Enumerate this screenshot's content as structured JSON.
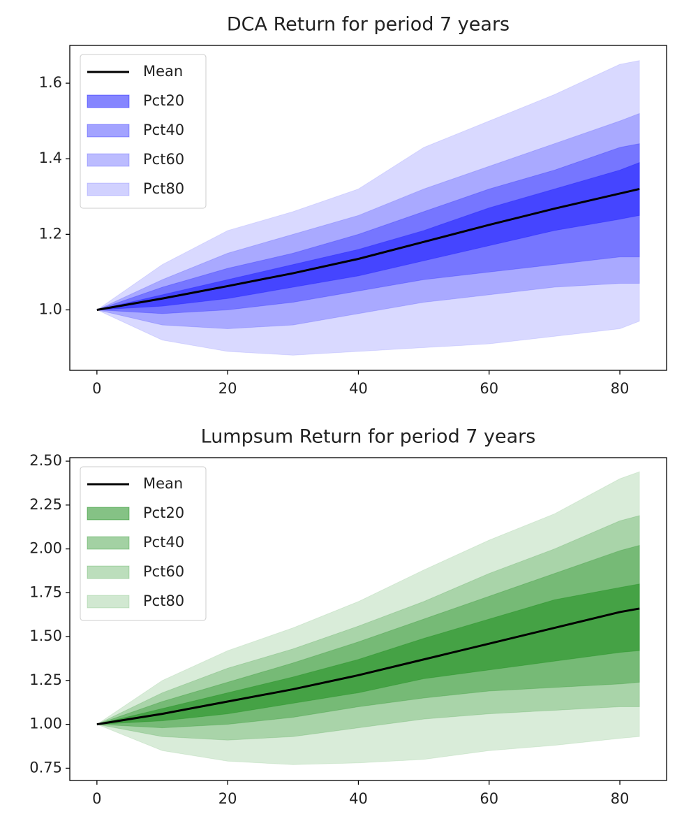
{
  "chart_data": [
    {
      "type": "fan",
      "title": "DCA Return for period 7 years",
      "x": [
        0,
        10,
        20,
        30,
        40,
        50,
        60,
        70,
        80,
        83
      ],
      "xlim": [
        -4.15,
        87.15
      ],
      "xticks": [
        0,
        20,
        40,
        60,
        80
      ],
      "ylim": [
        0.84,
        1.7
      ],
      "yticks": [
        {
          "value": 1.0,
          "label": "1.0"
        },
        1.2,
        1.4,
        1.6
      ],
      "legend": "upper left",
      "series": [
        {
          "name": "Mean",
          "color": "#000000",
          "values": [
            1.0,
            1.03,
            1.063,
            1.097,
            1.135,
            1.18,
            1.225,
            1.268,
            1.308,
            1.32
          ]
        },
        {
          "name": "Pct20",
          "color": "#0000ff",
          "alpha": 0.4,
          "lower": [
            1.0,
            1.01,
            1.03,
            1.06,
            1.09,
            1.13,
            1.17,
            1.21,
            1.24,
            1.25
          ],
          "upper": [
            1.0,
            1.04,
            1.08,
            1.12,
            1.16,
            1.21,
            1.27,
            1.32,
            1.37,
            1.39
          ]
        },
        {
          "name": "Pct40",
          "color": "#0000ff",
          "alpha": 0.3,
          "lower": [
            1.0,
            0.99,
            1.0,
            1.02,
            1.05,
            1.08,
            1.1,
            1.12,
            1.14,
            1.14
          ],
          "upper": [
            1.0,
            1.06,
            1.11,
            1.15,
            1.2,
            1.26,
            1.32,
            1.37,
            1.43,
            1.44
          ]
        },
        {
          "name": "Pct60",
          "color": "#0000ff",
          "alpha": 0.22,
          "lower": [
            1.0,
            0.96,
            0.95,
            0.96,
            0.99,
            1.02,
            1.04,
            1.06,
            1.07,
            1.07
          ],
          "upper": [
            1.0,
            1.08,
            1.15,
            1.2,
            1.25,
            1.32,
            1.38,
            1.44,
            1.5,
            1.52
          ]
        },
        {
          "name": "Pct80",
          "color": "#0000ff",
          "alpha": 0.15,
          "lower": [
            1.0,
            0.92,
            0.89,
            0.88,
            0.89,
            0.9,
            0.91,
            0.93,
            0.95,
            0.97
          ],
          "upper": [
            1.0,
            1.12,
            1.21,
            1.26,
            1.32,
            1.43,
            1.5,
            1.57,
            1.65,
            1.66
          ]
        }
      ]
    },
    {
      "type": "fan",
      "title": "Lumpsum Return for period 7 years",
      "x": [
        0,
        10,
        20,
        30,
        40,
        50,
        60,
        70,
        80,
        83
      ],
      "xlim": [
        -4.15,
        87.15
      ],
      "xticks": [
        0,
        20,
        40,
        60,
        80
      ],
      "ylim": [
        0.68,
        2.52
      ],
      "yticks": [
        0.75,
        {
          "value": 1.0,
          "label": "1.00"
        },
        1.25,
        {
          "value": 1.5,
          "label": "1.50"
        },
        1.75,
        {
          "value": 2.0,
          "label": "2.00"
        },
        2.25,
        {
          "value": 2.5,
          "label": "2.50"
        }
      ],
      "legend": "upper left",
      "series": [
        {
          "name": "Mean",
          "color": "#000000",
          "values": [
            1.0,
            1.06,
            1.13,
            1.2,
            1.28,
            1.37,
            1.46,
            1.55,
            1.64,
            1.66
          ]
        },
        {
          "name": "Pct20",
          "color": "#008000",
          "alpha": 0.4,
          "lower": [
            1.0,
            1.02,
            1.06,
            1.12,
            1.18,
            1.26,
            1.31,
            1.36,
            1.41,
            1.42
          ],
          "upper": [
            1.0,
            1.09,
            1.18,
            1.27,
            1.37,
            1.49,
            1.6,
            1.71,
            1.78,
            1.8
          ]
        },
        {
          "name": "Pct40",
          "color": "#008000",
          "alpha": 0.3,
          "lower": [
            1.0,
            0.98,
            1.0,
            1.04,
            1.1,
            1.15,
            1.19,
            1.21,
            1.23,
            1.24
          ],
          "upper": [
            1.0,
            1.13,
            1.24,
            1.35,
            1.47,
            1.6,
            1.73,
            1.86,
            1.99,
            2.02
          ]
        },
        {
          "name": "Pct60",
          "color": "#008000",
          "alpha": 0.22,
          "lower": [
            1.0,
            0.93,
            0.91,
            0.93,
            0.98,
            1.03,
            1.06,
            1.08,
            1.1,
            1.1
          ],
          "upper": [
            1.0,
            1.18,
            1.32,
            1.43,
            1.56,
            1.7,
            1.86,
            2.0,
            2.16,
            2.19
          ]
        },
        {
          "name": "Pct80",
          "color": "#008000",
          "alpha": 0.15,
          "lower": [
            1.0,
            0.85,
            0.79,
            0.77,
            0.78,
            0.8,
            0.85,
            0.88,
            0.92,
            0.93
          ],
          "upper": [
            1.0,
            1.25,
            1.42,
            1.55,
            1.7,
            1.88,
            2.05,
            2.2,
            2.4,
            2.44
          ]
        }
      ]
    }
  ]
}
